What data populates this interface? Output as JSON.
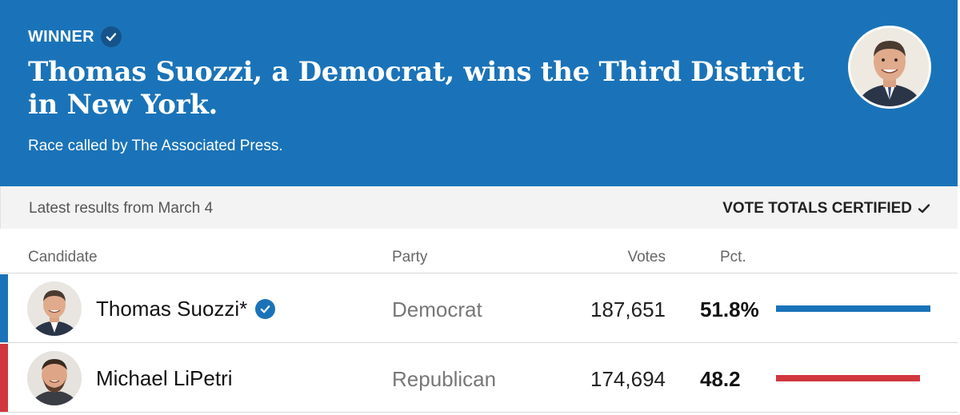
{
  "banner": {
    "winner_label": "WINNER",
    "headline": "Thomas Suozzi, a Democrat, wins the Third District in New York.",
    "subline": "Race called by The Associated Press.",
    "color": "#1a73b8"
  },
  "status": {
    "latest": "Latest results from March 4",
    "certified": "VOTE TOTALS CERTIFIED"
  },
  "table": {
    "headers": {
      "candidate": "Candidate",
      "party": "Party",
      "votes": "Votes",
      "pct": "Pct."
    },
    "rows": [
      {
        "name": "Thomas Suozzi*",
        "party": "Democrat",
        "votes": "187,651",
        "pct": "51.8%",
        "share": 0.518,
        "winner": true,
        "color": "#1a73b8"
      },
      {
        "name": "Michael LiPetri",
        "party": "Republican",
        "votes": "174,694",
        "pct": "48.2",
        "share": 0.482,
        "winner": false,
        "color": "#d0373e"
      }
    ]
  },
  "icons": {
    "winner_check": "checkmark-circle-icon",
    "certified_check": "checkmark-icon"
  }
}
